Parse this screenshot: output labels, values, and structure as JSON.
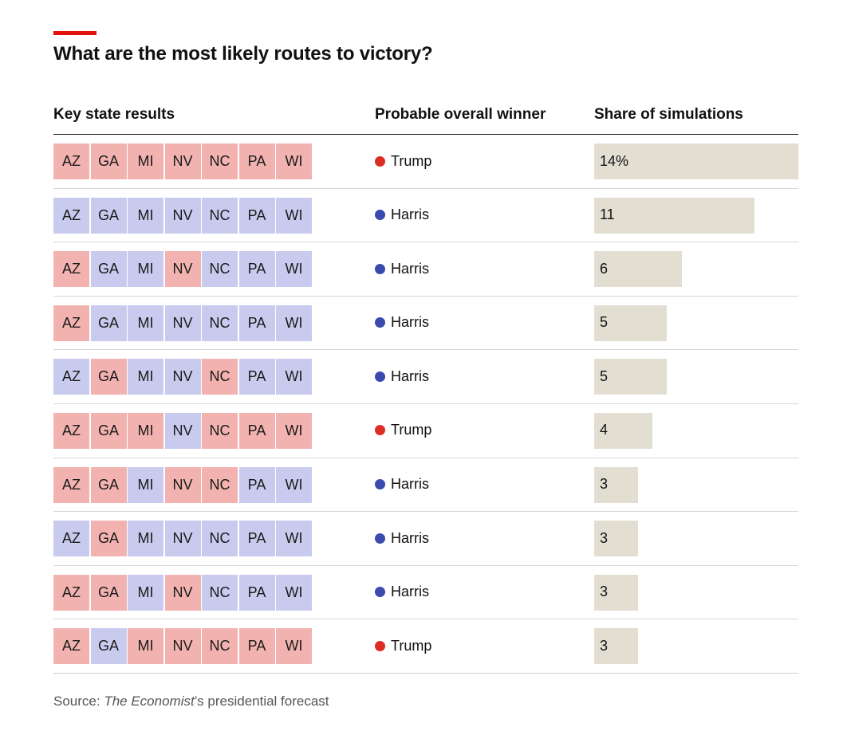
{
  "colors": {
    "accent": "#e3120b",
    "republican_tile": "#f2b3b0",
    "democrat_tile": "#c8cbee",
    "trump_dot": "#db2e25",
    "harris_dot": "#3a4aad",
    "bar_fill": "#e2dfd2"
  },
  "title": "What are the most likely routes to victory?",
  "headers": {
    "states": "Key state results",
    "winner": "Probable overall winner",
    "share": "Share of simulations"
  },
  "source": {
    "prefix": "Source: ",
    "italic": "The Economist",
    "suffix": "’s presidential forecast"
  },
  "chart_data": {
    "type": "table",
    "title": "What are the most likely routes to victory?",
    "unit": "% of simulations",
    "x_max": 14,
    "state_names": [
      "AZ",
      "GA",
      "MI",
      "NV",
      "NC",
      "PA",
      "WI"
    ],
    "legend": {
      "R": "Trump",
      "D": "Harris"
    },
    "rows": [
      {
        "states": [
          "R",
          "R",
          "R",
          "R",
          "R",
          "R",
          "R"
        ],
        "winner": "Trump",
        "share": 14,
        "label": "14%"
      },
      {
        "states": [
          "D",
          "D",
          "D",
          "D",
          "D",
          "D",
          "D"
        ],
        "winner": "Harris",
        "share": 11,
        "label": "11"
      },
      {
        "states": [
          "R",
          "D",
          "D",
          "R",
          "D",
          "D",
          "D"
        ],
        "winner": "Harris",
        "share": 6,
        "label": "6"
      },
      {
        "states": [
          "R",
          "D",
          "D",
          "D",
          "D",
          "D",
          "D"
        ],
        "winner": "Harris",
        "share": 5,
        "label": "5"
      },
      {
        "states": [
          "D",
          "R",
          "D",
          "D",
          "R",
          "D",
          "D"
        ],
        "winner": "Harris",
        "share": 5,
        "label": "5"
      },
      {
        "states": [
          "R",
          "R",
          "R",
          "D",
          "R",
          "R",
          "R"
        ],
        "winner": "Trump",
        "share": 4,
        "label": "4"
      },
      {
        "states": [
          "R",
          "R",
          "D",
          "R",
          "R",
          "D",
          "D"
        ],
        "winner": "Harris",
        "share": 3,
        "label": "3"
      },
      {
        "states": [
          "D",
          "R",
          "D",
          "D",
          "D",
          "D",
          "D"
        ],
        "winner": "Harris",
        "share": 3,
        "label": "3"
      },
      {
        "states": [
          "R",
          "R",
          "D",
          "R",
          "D",
          "D",
          "D"
        ],
        "winner": "Harris",
        "share": 3,
        "label": "3"
      },
      {
        "states": [
          "R",
          "D",
          "R",
          "R",
          "R",
          "R",
          "R"
        ],
        "winner": "Trump",
        "share": 3,
        "label": "3"
      }
    ]
  }
}
